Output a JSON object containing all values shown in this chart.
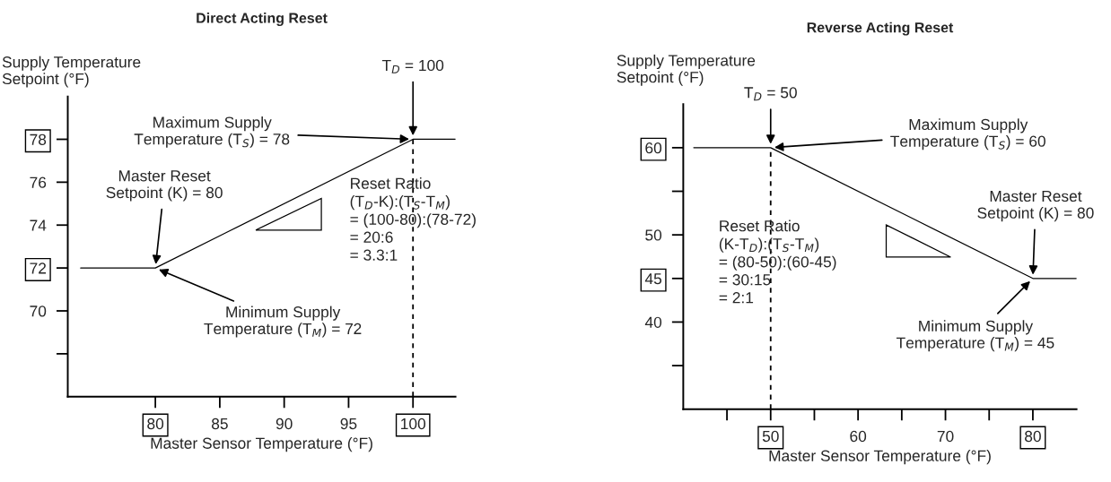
{
  "chart_data": [
    {
      "type": "line",
      "title": "Direct Acting Reset",
      "xlabel": "Master Sensor Temperature (°F)",
      "ylabel": "Supply Temperature\nSetpoint (°F)",
      "xlim": [
        73.2,
        103.3
      ],
      "ylim": [
        66,
        80
      ],
      "xticks": [
        80,
        85,
        90,
        95,
        100
      ],
      "yticks": [
        {
          "value": 68,
          "label": null
        },
        70,
        72,
        74,
        76,
        78
      ],
      "series": [
        {
          "color": "#000000",
          "x": [
            74.2,
            80,
            100,
            103.3
          ],
          "values": [
            72,
            72,
            78,
            78
          ]
        }
      ],
      "ref_lines": [
        {
          "axis": "x",
          "value": 100,
          "color": "#000000",
          "line_style": "dashed"
        }
      ],
      "annotations": [
        {
          "text": "T$_{D}$ = 100",
          "x": 100,
          "y": 78
        },
        {
          "text": "Maximum Supply\nTemperature (T$_{S}$) = 78",
          "x": 100,
          "y": 78
        },
        {
          "text": "Master Reset\nSetpoint (K) = 80",
          "x": 80,
          "y": 72
        },
        {
          "text": "Minimum Supply\nTemperature (T$_{M}$) = 72",
          "x": 80,
          "y": 72
        },
        "Reset Ratio\n(T$_{D}$-K):(T$_{S}$-T$_{M}$)\n= (100-80):(78-72)\n= 20:6\n= 3.3:1"
      ]
    },
    {
      "type": "line",
      "title": "Reverse Acting Reset",
      "xlabel": "Master Sensor Temperature (°F)",
      "ylabel": "Supply Temperature\nSetpoint (°F)",
      "xlim": [
        40,
        85
      ],
      "ylim": [
        30,
        65
      ],
      "xticks": [
        {
          "value": 45,
          "label": null
        },
        50,
        {
          "value": 55,
          "label": null
        },
        60,
        {
          "value": 65,
          "label": null
        },
        70,
        {
          "value": 75,
          "label": null
        },
        80
      ],
      "yticks": [
        {
          "value": 35,
          "label": null
        },
        40,
        45,
        50,
        {
          "value": 55,
          "label": null
        },
        60
      ],
      "series": [
        {
          "color": "#000000",
          "x": [
            41.2,
            50,
            80,
            85
          ],
          "values": [
            60,
            60,
            45,
            45
          ]
        }
      ],
      "ref_lines": [
        {
          "axis": "x",
          "value": 50,
          "color": "#000000",
          "line_style": "dashed"
        }
      ],
      "annotations": [
        {
          "text": "T$_{D}$ = 50",
          "x": 50,
          "y": 60
        },
        {
          "text": "Maximum Supply\nTemperature (T$_{S}$) = 60",
          "x": 50,
          "y": 60
        },
        {
          "text": "Master Reset\nSetpoint (K) = 80",
          "x": 80,
          "y": 45
        },
        {
          "text": "Minimum Supply\nTemperature (T$_{M}$) = 45",
          "x": 80,
          "y": 45
        },
        "Reset Ratio\n(K-T$_{D}$):(T$_{S}$-T$_{M}$)\n= (80-50):(60-45)\n= 30:15\n= 2:1"
      ]
    }
  ]
}
